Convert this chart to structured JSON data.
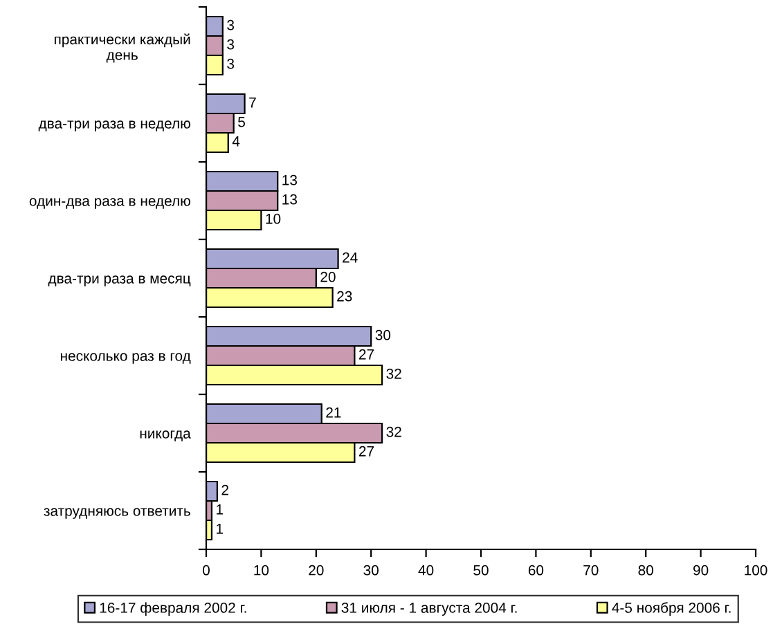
{
  "chart_data": {
    "type": "bar",
    "orientation": "horizontal",
    "categories": [
      "практически каждый\nдень",
      "два-три раза в неделю",
      "один-два раза в неделю",
      "два-три раза в месяц",
      "несколько раз в год",
      "никогда",
      "затрудняюсь ответить"
    ],
    "series": [
      {
        "name": "16-17 февраля 2002 г.",
        "color": "#a6a6d2",
        "values": [
          3,
          7,
          13,
          24,
          30,
          21,
          2
        ]
      },
      {
        "name": "31 июля - 1 августа 2004 г.",
        "color": "#c99ab0",
        "values": [
          3,
          5,
          13,
          20,
          27,
          32,
          1
        ]
      },
      {
        "name": "4-5 ноября 2006 г.",
        "color": "#ffff99",
        "values": [
          3,
          4,
          10,
          23,
          32,
          27,
          1
        ]
      }
    ],
    "xlim": [
      0,
      100
    ],
    "xticks": [
      0,
      10,
      20,
      30,
      40,
      50,
      60,
      70,
      80,
      90,
      100
    ],
    "data_labels": true,
    "legend": "bottom",
    "grid": false
  }
}
